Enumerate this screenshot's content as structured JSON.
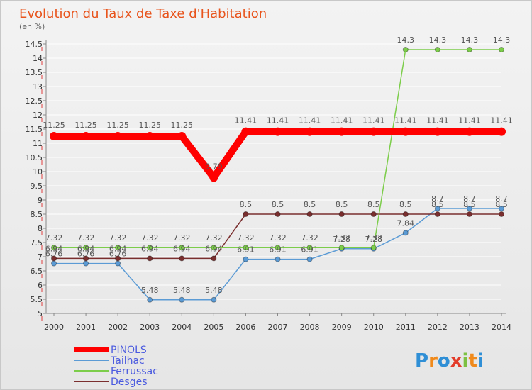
{
  "chart_data": {
    "type": "line",
    "title": "Evolution du Taux de Taxe d'Habitation",
    "ylabel": "(en %)",
    "xlabel": "",
    "ylim": [
      5,
      14.5
    ],
    "yticks": [
      "5",
      "5.5",
      "6",
      "6.5",
      "7",
      "7.5",
      "8",
      "8.5",
      "9",
      "9.5",
      "10",
      "10.5",
      "11",
      "11.5",
      "12",
      "12.5",
      "13",
      "13.5",
      "14",
      "14.5"
    ],
    "categories": [
      "2000",
      "2001",
      "2002",
      "2003",
      "2004",
      "2005",
      "2006",
      "2007",
      "2008",
      "2009",
      "2010",
      "2011",
      "2012",
      "2013",
      "2014"
    ],
    "series": [
      {
        "name": "PINOLS",
        "color": "#ff0000",
        "values": [
          11.25,
          11.25,
          11.25,
          11.25,
          11.25,
          9.79,
          11.41,
          11.41,
          11.41,
          11.41,
          11.41,
          11.41,
          11.41,
          11.41,
          11.41
        ],
        "labels": [
          "11.25",
          "11.25",
          "11.25",
          "11.25",
          "11.25",
          "9.79",
          "11.41",
          "11.41",
          "11.41",
          "11.41",
          "11.41",
          "11.41",
          "11.41",
          "11.41",
          "11.41"
        ]
      },
      {
        "name": "Tailhac",
        "color": "#5b9bd5",
        "values": [
          6.76,
          6.76,
          6.76,
          5.48,
          5.48,
          5.48,
          6.91,
          6.91,
          6.91,
          7.28,
          7.28,
          7.84,
          8.7,
          8.7,
          8.7
        ],
        "labels": [
          "6.76",
          "6.76",
          "6.76",
          "5.48",
          "5.48",
          "5.48",
          "6.91",
          "6.91",
          "6.91",
          "7.28",
          "7.28",
          "7.84",
          "8.7",
          "8.7",
          "8.7"
        ]
      },
      {
        "name": "Ferrussac",
        "color": "#7ccd4a",
        "values": [
          7.32,
          7.32,
          7.32,
          7.32,
          7.32,
          7.32,
          7.32,
          7.32,
          7.32,
          7.32,
          7.32,
          14.3,
          14.3,
          14.3,
          14.3
        ],
        "labels": [
          "7.32",
          "7.32",
          "7.32",
          "7.32",
          "7.32",
          "7.32",
          "7.32",
          "7.32",
          "7.32",
          "7.32",
          "7.32",
          "14.3",
          "14.3",
          "14.3",
          "14.3"
        ]
      },
      {
        "name": "Desges",
        "color": "#7a2e2e",
        "values": [
          6.94,
          6.94,
          6.94,
          6.94,
          6.94,
          6.94,
          8.5,
          8.5,
          8.5,
          8.5,
          8.5,
          8.5,
          8.5,
          8.5,
          8.5
        ],
        "labels": [
          "6.94",
          "6.94",
          "6.94",
          "6.94",
          "6.94",
          "6.94",
          "8.5",
          "8.5",
          "8.5",
          "8.5",
          "8.5",
          "8.5",
          "8.5",
          "8.5",
          "8.5"
        ]
      }
    ]
  },
  "brand": {
    "text": "Proxiti",
    "letters": [
      "P",
      "r",
      "o",
      "x",
      "i",
      "t",
      "i"
    ],
    "colors": [
      "#2f8fd6",
      "#f08a1c",
      "#2f8fd6",
      "#e33c2a",
      "#7cc142",
      "#f08a1c",
      "#2f8fd6"
    ]
  }
}
